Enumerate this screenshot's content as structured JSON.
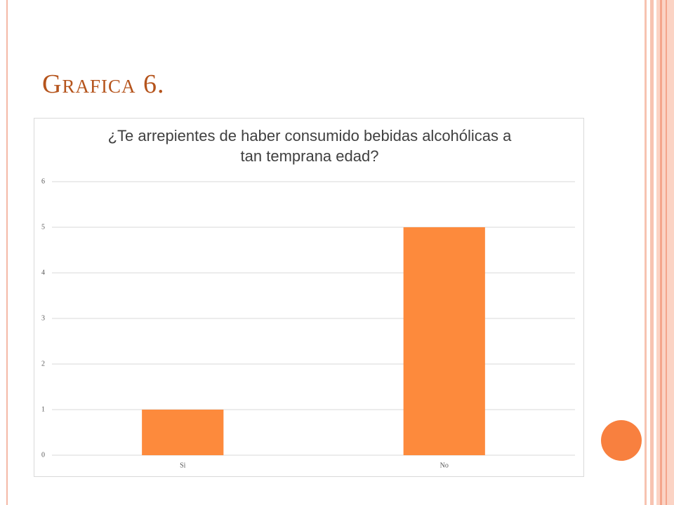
{
  "slide_title": "Grafica 6.",
  "chart_data": {
    "type": "bar",
    "title": "¿Te arrepientes de haber consumido bebidas alcohólicas a tan temprana edad?",
    "categories": [
      "Si",
      "No"
    ],
    "values": [
      1,
      5
    ],
    "color": "#fd8a3c",
    "ylim": [
      0,
      6
    ],
    "yticks": [
      0,
      1,
      2,
      3,
      4,
      5,
      6
    ],
    "grid": true
  }
}
